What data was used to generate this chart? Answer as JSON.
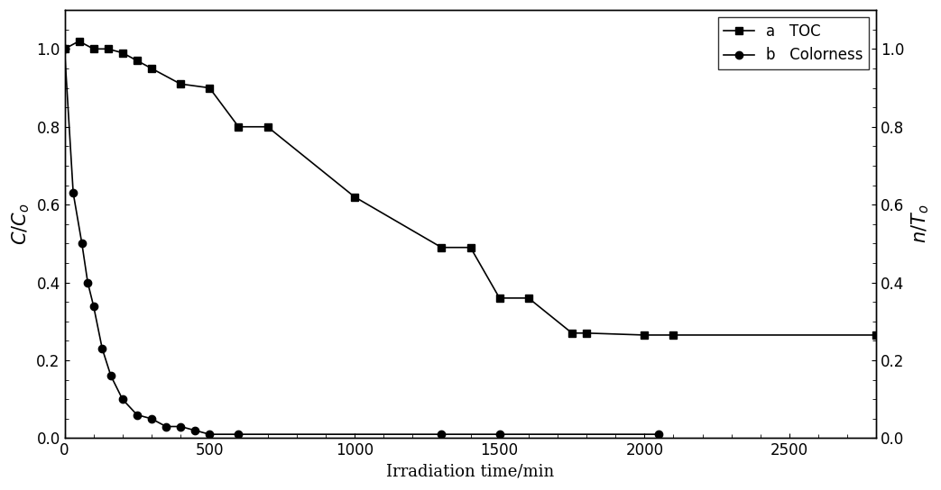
{
  "toc_x": [
    0,
    50,
    100,
    150,
    200,
    250,
    300,
    400,
    500,
    600,
    700,
    1000,
    1300,
    1400,
    1500,
    1600,
    1750,
    1800,
    2000,
    2100,
    2800
  ],
  "toc_y": [
    1.0,
    1.02,
    1.0,
    1.0,
    0.99,
    0.97,
    0.95,
    0.91,
    0.9,
    0.8,
    0.8,
    0.62,
    0.49,
    0.49,
    0.36,
    0.36,
    0.27,
    0.27,
    0.265,
    0.265,
    0.265
  ],
  "color_x": [
    0,
    30,
    60,
    80,
    100,
    130,
    160,
    200,
    250,
    300,
    350,
    400,
    450,
    500,
    600,
    1300,
    1500,
    2050
  ],
  "color_y": [
    1.0,
    0.63,
    0.5,
    0.4,
    0.34,
    0.23,
    0.16,
    0.1,
    0.06,
    0.05,
    0.03,
    0.03,
    0.02,
    0.01,
    0.01,
    0.01,
    0.01,
    0.01
  ],
  "xlabel": "Irradiation time/min",
  "ylabel_left": "$C/C_o$",
  "ylabel_right": "$n/T_o$",
  "xlim": [
    0,
    2800
  ],
  "ylim_left": [
    0,
    1.1
  ],
  "ylim_right": [
    0,
    1.1
  ],
  "xticks": [
    0,
    500,
    1000,
    1500,
    2000,
    2500
  ],
  "yticks_left": [
    0.0,
    0.2,
    0.4,
    0.6,
    0.8,
    1.0
  ],
  "yticks_right": [
    0.0,
    0.2,
    0.4,
    0.6,
    0.8,
    1.0
  ],
  "legend_label_a": "a   TOC",
  "legend_label_b": "b   Colorness",
  "line_color": "#000000",
  "bg_color": "#ffffff",
  "fontsize": 13,
  "legend_fontsize": 12
}
